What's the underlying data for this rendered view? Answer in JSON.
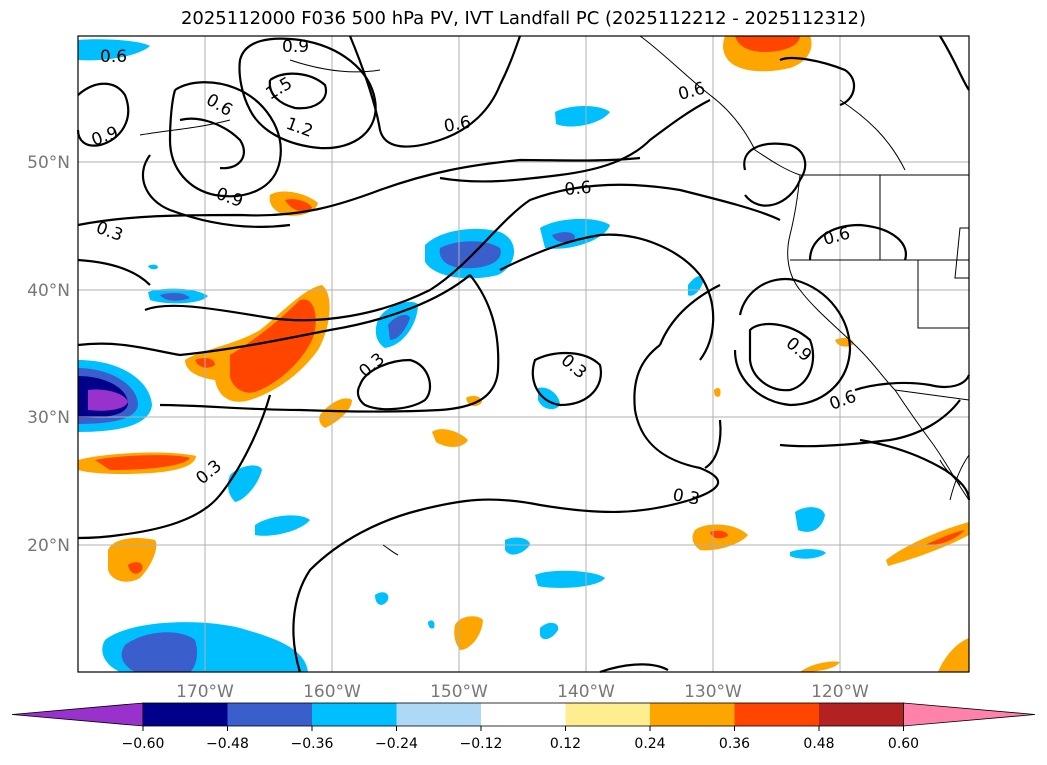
{
  "title": "2025112000 F036 500 hPa PV, IVT Landfall PC (2025112212 - 2025112312)",
  "map": {
    "lat_labels": [
      "50°N",
      "40°N",
      "30°N",
      "20°N"
    ],
    "lon_labels": [
      "170°W",
      "160°W",
      "150°W",
      "140°W",
      "130°W",
      "120°W"
    ],
    "contour_labels": [
      "0.6",
      "0.9",
      "1.5",
      "0.6",
      "1.2",
      "0.9",
      "0.9",
      "0.6",
      "0.3",
      "0.6",
      "0.6",
      "0.6",
      "0.9",
      "0.3",
      "0.3",
      "0.6",
      "0.3",
      "0.3"
    ]
  },
  "colorbar": {
    "tick_labels": [
      "−0.60",
      "−0.48",
      "−0.36",
      "−0.24",
      "−0.12",
      "0.12",
      "0.24",
      "0.36",
      "0.48",
      "0.60"
    ],
    "colors": [
      "#9932cc",
      "#00008b",
      "#3a5fcd",
      "#00bfff",
      "#add8f6",
      "#ffffff",
      "#ffee8f",
      "#ffa500",
      "#ff4500",
      "#b22222",
      "#ff82ab"
    ]
  }
}
